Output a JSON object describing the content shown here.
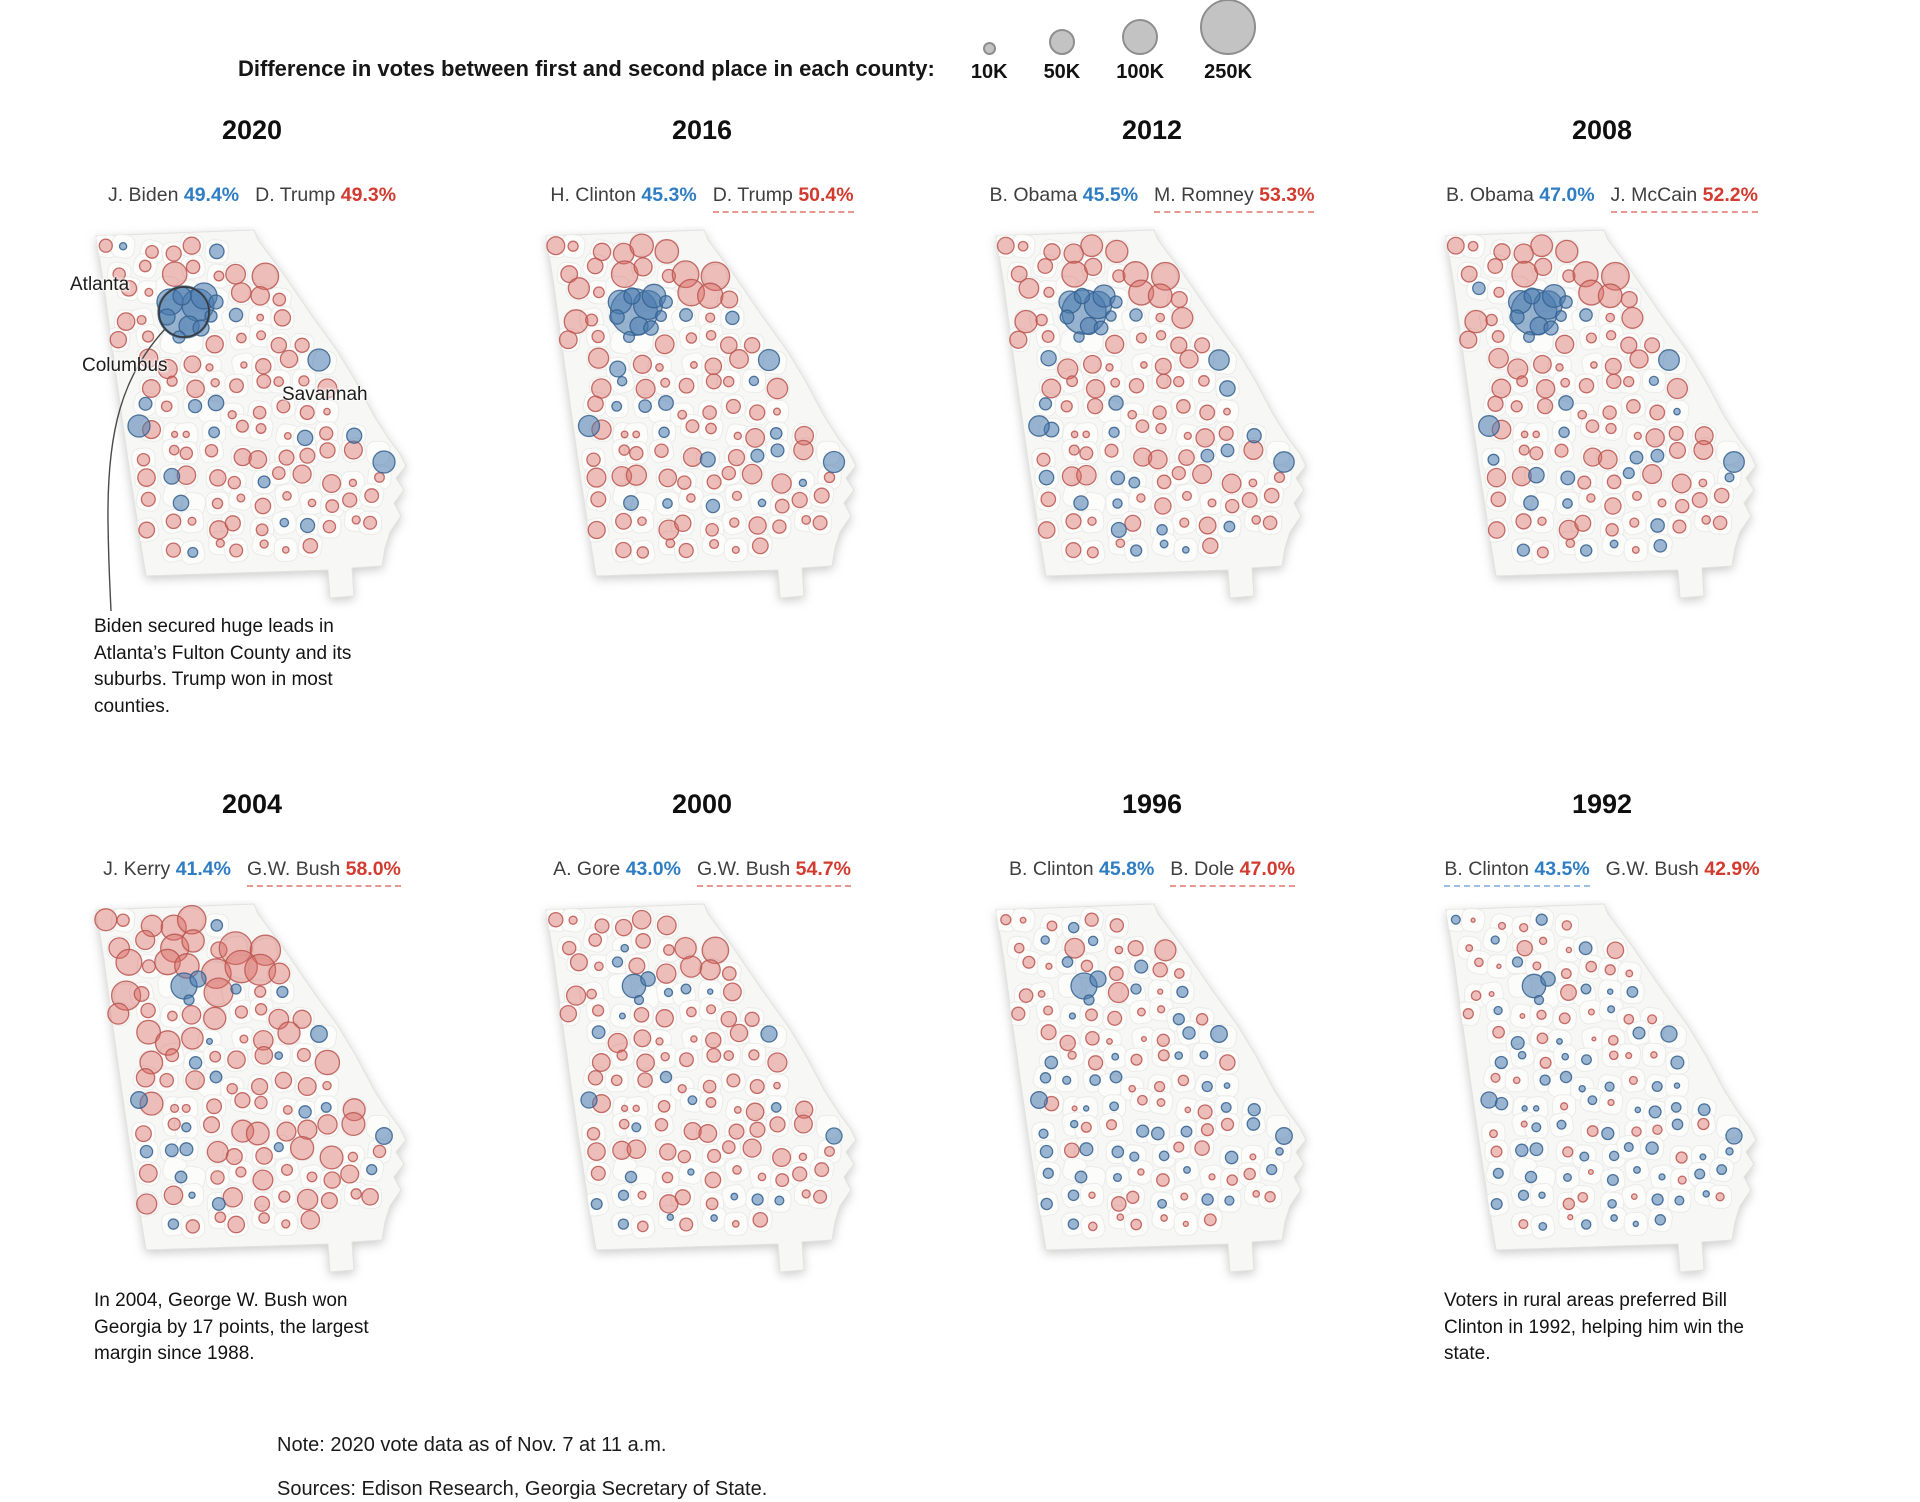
{
  "legend": {
    "title": "Difference in votes between first and second place in each county:",
    "sizes": [
      {
        "label": "10K"
      },
      {
        "label": "50K"
      },
      {
        "label": "100K"
      },
      {
        "label": "250K"
      }
    ]
  },
  "map_labels": {
    "atlanta": "Atlanta",
    "columbus": "Columbus",
    "savannah": "Savannah"
  },
  "annotations": {
    "a2020": "Biden secured huge leads in Atlanta’s Fulton County and its suburbs. Trump won in most counties.",
    "a2004": "In 2004, George W. Bush won Georgia by 17 points, the largest margin since 1988.",
    "a1992": "Voters in rural areas preferred Bill Clinton in 1992, helping him win the state."
  },
  "footer": {
    "note": "Note: 2020 vote data as of Nov. 7 at 11 a.m.",
    "sources": "Sources: Edison Research, Georgia Secretary of State."
  },
  "colors": {
    "dem_text": "#2f7dc2",
    "rep_text": "#d23b2f",
    "dem_bubble_fill": "rgba(72,122,175,0.55)",
    "dem_bubble_stroke": "rgba(53,96,142,0.85)",
    "rep_bubble_fill": "rgba(216,103,96,0.42)",
    "rep_bubble_stroke": "rgba(186,86,80,0.85)",
    "legend_circle_fill": "#c3c3c3",
    "legend_circle_stroke": "#8e8e8e",
    "state_fill": "#f7f7f5",
    "state_stroke": "#e2e2e0"
  },
  "chart_data": {
    "type": "scatter",
    "subtype": "small-multiple-bubble-maps",
    "geography": "Georgia counties",
    "bubble_encoding": "Difference in votes between first and second place in each county",
    "size_scale": [
      {
        "label": "10K",
        "radius_px": 6.5
      },
      {
        "label": "50K",
        "radius_px": 13
      },
      {
        "label": "100K",
        "radius_px": 18
      },
      {
        "label": "250K",
        "radius_px": 28
      }
    ],
    "years": [
      {
        "year": "2020",
        "democrat": {
          "name": "J. Biden",
          "pct": "49.4%"
        },
        "republican": {
          "name": "D. Trump",
          "pct": "49.3%"
        },
        "winner_underlined": null,
        "annotation_key": "a2020",
        "has_city_labels": true,
        "map_style": {
          "seed": 7,
          "metro_scale": 1.0,
          "rural_blue_share": 0.13,
          "red_scale": 1.0,
          "north_red_boost": 1.15,
          "fulton_ring": true
        }
      },
      {
        "year": "2016",
        "democrat": {
          "name": "H. Clinton",
          "pct": "45.3%"
        },
        "republican": {
          "name": "D. Trump",
          "pct": "50.4%"
        },
        "winner_underlined": "republican",
        "annotation_key": null,
        "has_city_labels": false,
        "map_style": {
          "seed": 11,
          "metro_scale": 0.9,
          "rural_blue_share": 0.13,
          "red_scale": 1.08,
          "north_red_boost": 1.45,
          "fulton_ring": false
        }
      },
      {
        "year": "2012",
        "democrat": {
          "name": "B. Obama",
          "pct": "45.5%"
        },
        "republican": {
          "name": "M. Romney",
          "pct": "53.3%"
        },
        "winner_underlined": "republican",
        "annotation_key": null,
        "has_city_labels": false,
        "map_style": {
          "seed": 13,
          "metro_scale": 0.85,
          "rural_blue_share": 0.14,
          "red_scale": 1.05,
          "north_red_boost": 1.4,
          "fulton_ring": false
        }
      },
      {
        "year": "2008",
        "democrat": {
          "name": "B. Obama",
          "pct": "47.0%"
        },
        "republican": {
          "name": "J. McCain",
          "pct": "52.2%"
        },
        "winner_underlined": "republican",
        "annotation_key": null,
        "has_city_labels": false,
        "map_style": {
          "seed": 17,
          "metro_scale": 0.88,
          "rural_blue_share": 0.15,
          "red_scale": 1.05,
          "north_red_boost": 1.4,
          "fulton_ring": false
        }
      },
      {
        "year": "2004",
        "democrat": {
          "name": "J. Kerry",
          "pct": "41.4%"
        },
        "republican": {
          "name": "G.W. Bush",
          "pct": "58.0%"
        },
        "winner_underlined": "republican",
        "annotation_key": "a2004",
        "has_city_labels": false,
        "map_style": {
          "seed": 19,
          "metro_scale": 0.5,
          "rural_blue_share": 0.11,
          "red_scale": 1.28,
          "north_red_boost": 1.5,
          "fulton_ring": false
        }
      },
      {
        "year": "2000",
        "democrat": {
          "name": "A. Gore",
          "pct": "43.0%"
        },
        "republican": {
          "name": "G.W. Bush",
          "pct": "54.7%"
        },
        "winner_underlined": "republican",
        "annotation_key": null,
        "has_city_labels": false,
        "map_style": {
          "seed": 23,
          "metro_scale": 0.45,
          "rural_blue_share": 0.16,
          "red_scale": 1.0,
          "north_red_boost": 1.25,
          "fulton_ring": false
        }
      },
      {
        "year": "1996",
        "democrat": {
          "name": "B. Clinton",
          "pct": "45.8%"
        },
        "republican": {
          "name": "B. Dole",
          "pct": "47.0%"
        },
        "winner_underlined": "republican",
        "annotation_key": null,
        "has_city_labels": false,
        "map_style": {
          "seed": 29,
          "metro_scale": 0.5,
          "rural_blue_share": 0.42,
          "red_scale": 0.8,
          "north_red_boost": 1.1,
          "fulton_ring": false
        }
      },
      {
        "year": "1992",
        "democrat": {
          "name": "B. Clinton",
          "pct": "43.5%"
        },
        "republican": {
          "name": "G.W. Bush",
          "pct": "42.9%"
        },
        "winner_underlined": "democrat",
        "annotation_key": "a1992",
        "has_city_labels": false,
        "map_style": {
          "seed": 31,
          "metro_scale": 0.45,
          "rural_blue_share": 0.52,
          "red_scale": 0.62,
          "north_red_boost": 1.0,
          "fulton_ring": false
        }
      }
    ]
  }
}
